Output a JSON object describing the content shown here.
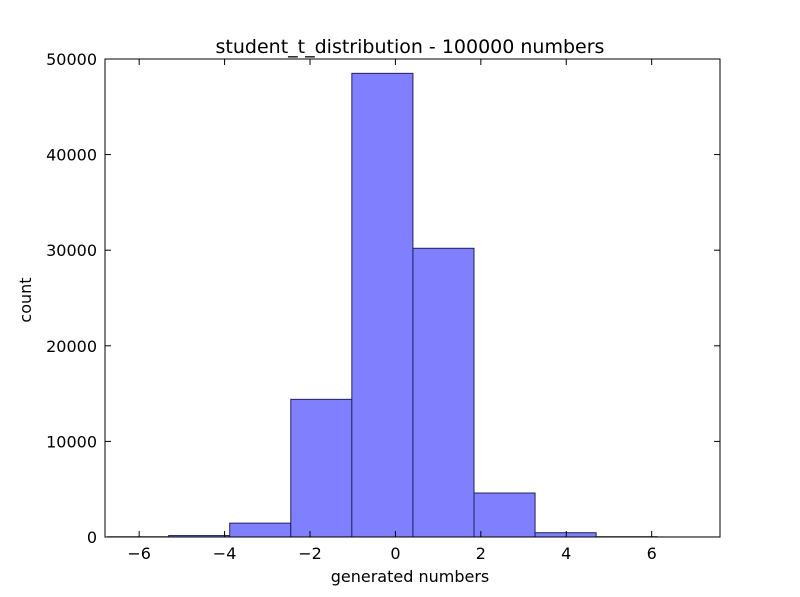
{
  "chart_data": {
    "type": "bar",
    "title": "student_t_distribution - 100000 numbers",
    "xlabel": "generated numbers",
    "ylabel": "count",
    "xlim": [
      -6.8,
      7.6
    ],
    "ylim": [
      0,
      50000
    ],
    "xticks": [
      -6,
      -4,
      -2,
      0,
      2,
      4,
      6
    ],
    "xtick_labels": [
      "−6",
      "−4",
      "−2",
      "0",
      "2",
      "4",
      "6"
    ],
    "yticks": [
      0,
      10000,
      20000,
      30000,
      40000,
      50000
    ],
    "ytick_labels": [
      "0",
      "10000",
      "20000",
      "30000",
      "40000",
      "50000"
    ],
    "bins": [
      {
        "x0": -6.74,
        "x1": -5.31,
        "count": 25
      },
      {
        "x0": -5.31,
        "x1": -3.88,
        "count": 150
      },
      {
        "x0": -3.88,
        "x1": -2.45,
        "count": 1450
      },
      {
        "x0": -2.45,
        "x1": -1.02,
        "count": 14400
      },
      {
        "x0": -1.02,
        "x1": 0.41,
        "count": 48500
      },
      {
        "x0": 0.41,
        "x1": 1.84,
        "count": 30200
      },
      {
        "x0": 1.84,
        "x1": 3.27,
        "count": 4600
      },
      {
        "x0": 3.27,
        "x1": 4.7,
        "count": 450
      },
      {
        "x0": 4.7,
        "x1": 6.13,
        "count": 30
      },
      {
        "x0": 6.13,
        "x1": 7.56,
        "count": 5
      }
    ],
    "bar_color": "#8080ff",
    "bar_edge_color": "#202060",
    "grid": false
  }
}
